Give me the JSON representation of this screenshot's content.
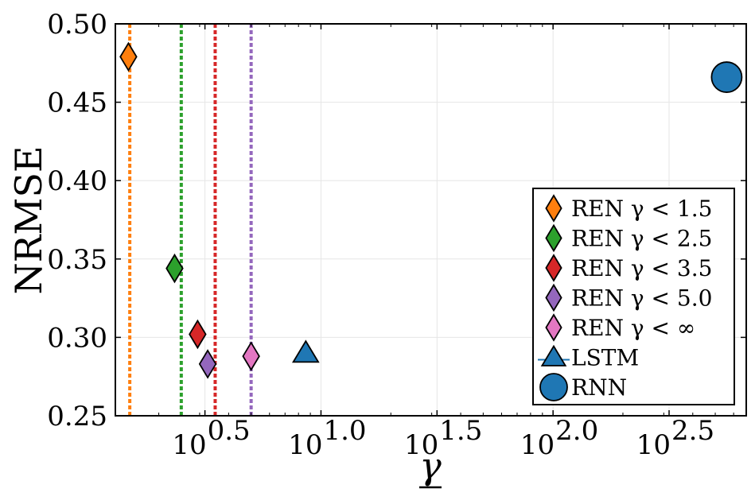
{
  "chart_data": {
    "type": "scatter",
    "xlabel": "γ",
    "ylabel": "NRMSE",
    "x_scale": "log10",
    "xlim": [
      1.3,
      680
    ],
    "ylim": [
      0.25,
      0.5
    ],
    "grid": true,
    "legend_position": "lower-right",
    "y_ticks": [
      {
        "value": 0.25,
        "label": "0.25"
      },
      {
        "value": 0.3,
        "label": "0.30"
      },
      {
        "value": 0.35,
        "label": "0.35"
      },
      {
        "value": 0.4,
        "label": "0.40"
      },
      {
        "value": 0.45,
        "label": "0.45"
      },
      {
        "value": 0.5,
        "label": "0.50"
      }
    ],
    "x_ticks": [
      {
        "exponent": 0.5,
        "base": "10",
        "sup": "0.5"
      },
      {
        "exponent": 1.0,
        "base": "10",
        "sup": "1.0"
      },
      {
        "exponent": 1.5,
        "base": "10",
        "sup": "1.5"
      },
      {
        "exponent": 2.0,
        "base": "10",
        "sup": "2.0"
      },
      {
        "exponent": 2.5,
        "base": "10",
        "sup": "2.5"
      }
    ],
    "vlines": [
      {
        "x": 1.5,
        "color": "#ff7f0e"
      },
      {
        "x": 2.5,
        "color": "#2ca02c"
      },
      {
        "x": 3.5,
        "color": "#d62728"
      },
      {
        "x": 5.0,
        "color": "#9467bd"
      }
    ],
    "series": [
      {
        "name": "REN γ < 1.5",
        "marker": "diamond",
        "color": "#ff7f0e",
        "points": [
          {
            "x": 1.48,
            "y": 0.479
          }
        ]
      },
      {
        "name": "REN γ < 2.5",
        "marker": "diamond",
        "color": "#2ca02c",
        "points": [
          {
            "x": 2.34,
            "y": 0.344
          }
        ]
      },
      {
        "name": "REN γ < 3.5",
        "marker": "diamond",
        "color": "#d62728",
        "points": [
          {
            "x": 2.94,
            "y": 0.302
          }
        ]
      },
      {
        "name": "REN γ < 5.0",
        "marker": "diamond",
        "color": "#9467bd",
        "points": [
          {
            "x": 3.25,
            "y": 0.283
          }
        ]
      },
      {
        "name": "REN γ < ∞",
        "marker": "diamond",
        "color": "#e377c2",
        "points": [
          {
            "x": 5.0,
            "y": 0.288
          }
        ]
      },
      {
        "name": "LSTM",
        "marker": "triangle",
        "color": "#1f77b4",
        "points": [
          {
            "x": 8.6,
            "y": 0.29
          }
        ]
      },
      {
        "name": "RNN",
        "marker": "circle",
        "color": "#1f77b4",
        "points": [
          {
            "x": 560,
            "y": 0.466
          }
        ]
      }
    ]
  }
}
